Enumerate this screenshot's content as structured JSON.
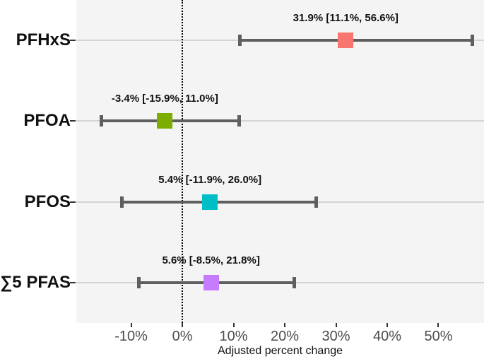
{
  "chart_data": {
    "type": "scatter",
    "subtype": "forest-plot-with-error-bars",
    "title": "",
    "xlabel": "Adjusted percent change",
    "ylabel": "",
    "xlim": [
      -20.7,
      58.9
    ],
    "grid": "horizontal-major-only",
    "legend_position": "none",
    "zero_reference_line": 0,
    "x_ticks": [
      {
        "value": -10,
        "label": "-10%"
      },
      {
        "value": 0,
        "label": "0%"
      },
      {
        "value": 10,
        "label": "10%"
      },
      {
        "value": 20,
        "label": "20%"
      },
      {
        "value": 30,
        "label": "30%"
      },
      {
        "value": 40,
        "label": "40%"
      },
      {
        "value": 50,
        "label": "50%"
      }
    ],
    "categories": [
      "PFHxS",
      "PFOA",
      "PFOS",
      "∑5 PFAS"
    ],
    "points": [
      {
        "category": "PFHxS",
        "estimate": 31.9,
        "ci_low": 11.1,
        "ci_high": 56.6,
        "label": "31.9% [11.1%, 56.6%]",
        "color": "#F8766D"
      },
      {
        "category": "PFOA",
        "estimate": -3.4,
        "ci_low": -15.9,
        "ci_high": 11.0,
        "label": "-3.4% [-15.9%, 11.0%]",
        "color": "#7CAE00"
      },
      {
        "category": "PFOS",
        "estimate": 5.4,
        "ci_low": -11.9,
        "ci_high": 26.0,
        "label": "5.4% [-11.9%, 26.0%]",
        "color": "#00BFC4"
      },
      {
        "category": "∑5 PFAS",
        "estimate": 5.6,
        "ci_low": -8.5,
        "ci_high": 21.8,
        "label": "5.6% [-8.5%, 21.8%]",
        "color": "#C77CFF"
      }
    ],
    "colors": {
      "panel_background": "#f4f4f4",
      "gridline": "#d4d4d4",
      "error_bar": "#5f5f5f",
      "zero_line": "#000000",
      "tick_label": "#4d4d4d",
      "text": "#111111"
    }
  }
}
